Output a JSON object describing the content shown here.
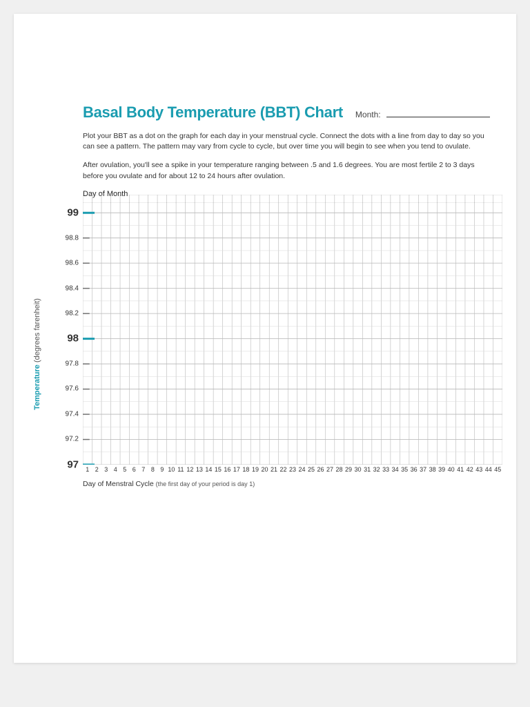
{
  "header": {
    "title": "Basal Body Temperature (BBT) Chart",
    "month_label": "Month:"
  },
  "instructions": {
    "p1": "Plot your BBT as a dot on the graph for each day in your menstrual cycle. Connect the dots with a line from day to day so you can see a pattern. The pattern may vary from cycle to cycle, but over time you will begin to see when you tend to ovulate.",
    "p2": "After ovulation, you'll see a spike in your temperature ranging between .5 and 1.6 degrees. You are most fertile 2 to 3 days before you ovulate and for about 12 to 24 hours after ovulation."
  },
  "chart": {
    "type": "line",
    "day_of_month_label": "Day of Month",
    "y_axis_label_bold": "Temperature",
    "y_axis_label_light": " (degrees farenheit)",
    "x_axis_label": "Day of Menstral Cycle ",
    "x_axis_note": "(the first day of your period is day 1)",
    "ylim": [
      97,
      99
    ],
    "y_ticks": [
      {
        "v": 99,
        "label": "99",
        "major": true
      },
      {
        "v": 98.8,
        "label": "98.8",
        "major": false
      },
      {
        "v": 98.6,
        "label": "98.6",
        "major": false
      },
      {
        "v": 98.4,
        "label": "98.4",
        "major": false
      },
      {
        "v": 98.2,
        "label": "98.2",
        "major": false
      },
      {
        "v": 98,
        "label": "98",
        "major": true
      },
      {
        "v": 97.8,
        "label": "97.8",
        "major": false
      },
      {
        "v": 97.6,
        "label": "97.6",
        "major": false
      },
      {
        "v": 97.4,
        "label": "97.4",
        "major": false
      },
      {
        "v": 97.2,
        "label": "97.2",
        "major": false
      },
      {
        "v": 97,
        "label": "97",
        "major": true
      }
    ],
    "x_days": 45,
    "grid_color": "#b8b8b8",
    "grid_color_light": "#d8d8d8",
    "major_tick_color": "#1a9cb0",
    "background_color": "#ffffff"
  }
}
